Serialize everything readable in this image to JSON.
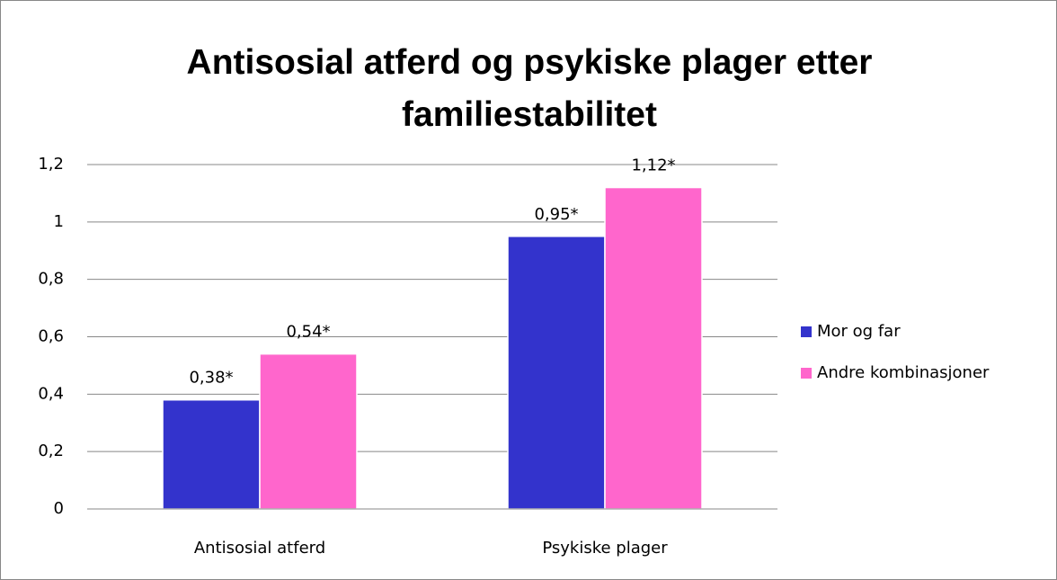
{
  "chart_data": {
    "type": "bar",
    "title": "Antisosial atferd og psykiske plager etter familiestabilitet",
    "categories": [
      "Antisosial atferd",
      "Psykiske plager"
    ],
    "series": [
      {
        "name": "Mor og far",
        "color": "#3333cc",
        "values": [
          0.38,
          0.95
        ],
        "value_labels": [
          "0,38*",
          "0,95*"
        ]
      },
      {
        "name": "Andre kombinasjoner",
        "color": "#ff66cc",
        "values": [
          0.54,
          1.12
        ],
        "value_labels": [
          "0,54*",
          "1,12*"
        ]
      }
    ],
    "ylim": [
      0,
      1.2
    ],
    "yticks": [
      0,
      {
        "value": 0.2,
        "label": "0,2"
      },
      {
        "value": 0.4,
        "label": "0,4"
      },
      {
        "value": 0.6,
        "label": "0,6"
      },
      {
        "value": 0.8,
        "label": "0,8"
      },
      1,
      {
        "value": 1.2,
        "label": "1,2"
      }
    ],
    "grid": true,
    "legend": "right"
  }
}
